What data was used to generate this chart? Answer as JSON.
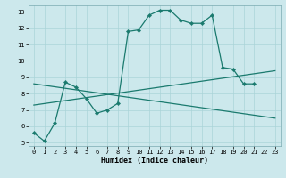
{
  "title": "",
  "xlabel": "Humidex (Indice chaleur)",
  "bg_color": "#cce8ec",
  "grid_color": "#aad4d8",
  "line_color": "#1a7a6e",
  "xlim": [
    -0.5,
    23.5
  ],
  "ylim": [
    4.8,
    13.4
  ],
  "xticks": [
    0,
    1,
    2,
    3,
    4,
    5,
    6,
    7,
    8,
    9,
    10,
    11,
    12,
    13,
    14,
    15,
    16,
    17,
    18,
    19,
    20,
    21,
    22,
    23
  ],
  "yticks": [
    5,
    6,
    7,
    8,
    9,
    10,
    11,
    12,
    13
  ],
  "line1_x": [
    0,
    1,
    2,
    3,
    4,
    5,
    6,
    7,
    8,
    9,
    10,
    11,
    12,
    13,
    14,
    15,
    16,
    17,
    18,
    19,
    20,
    21
  ],
  "line1_y": [
    5.6,
    5.1,
    6.2,
    8.7,
    8.4,
    7.7,
    6.8,
    7.0,
    7.4,
    11.8,
    11.9,
    12.8,
    13.1,
    13.1,
    12.5,
    12.3,
    12.3,
    12.8,
    9.6,
    9.5,
    8.6,
    8.6
  ],
  "line2_x": [
    0,
    23
  ],
  "line2_y": [
    7.3,
    9.4
  ],
  "line3_x": [
    0,
    23
  ],
  "line3_y": [
    8.6,
    6.5
  ]
}
